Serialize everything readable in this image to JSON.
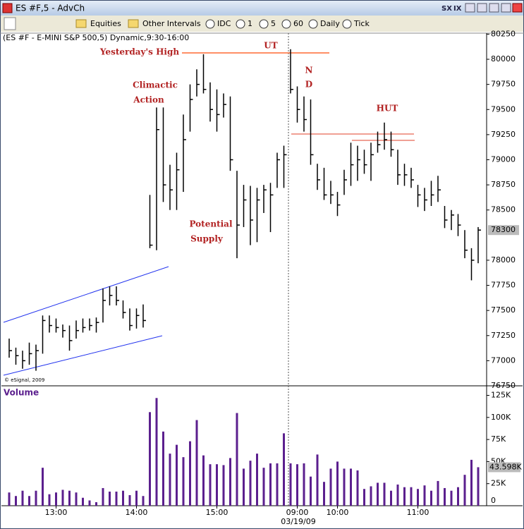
{
  "window": {
    "title": "ES #F,5 - AdvCh",
    "buttons": [
      "SX",
      "IX"
    ]
  },
  "toolbar": {
    "items": [
      "Equities",
      "Other Intervals",
      "IDC",
      "1",
      "5",
      "60",
      "Daily",
      "Tick"
    ]
  },
  "chart_data": {
    "type": "ohlc",
    "title": "(ES #F - E-MINI S&P 500,5) Dynamic,9:30-16:00",
    "copyright": "© eSignal, 2009",
    "color": "#000000",
    "categories": [
      null,
      null,
      null,
      null,
      null,
      null,
      null,
      "13:00",
      null,
      null,
      null,
      null,
      null,
      null,
      null,
      null,
      null,
      null,
      null,
      "14:00",
      null,
      null,
      null,
      null,
      null,
      null,
      null,
      null,
      null,
      null,
      null,
      "15:00",
      null,
      null,
      null,
      null,
      null,
      null,
      null,
      null,
      null,
      null,
      null,
      "09:00",
      null,
      null,
      null,
      null,
      null,
      "10:00",
      null,
      null,
      null,
      null,
      null,
      null,
      null,
      null,
      null,
      null,
      null,
      "11:00",
      null,
      null,
      null,
      null,
      null,
      null,
      null,
      null,
      null
    ],
    "date_label": "03/19/09",
    "high": [
      77220,
      77130,
      77100,
      77180,
      77160,
      77450,
      77450,
      77420,
      77360,
      77350,
      77400,
      77420,
      77420,
      77430,
      77720,
      77740,
      77740,
      77600,
      77520,
      77520,
      77560,
      78650,
      79520,
      79520,
      78950,
      79070,
      79450,
      79750,
      79900,
      80050,
      79770,
      79700,
      79660,
      79630,
      78890,
      78750,
      78740,
      78720,
      78750,
      78770,
      79070,
      79140,
      80100,
      79730,
      79630,
      79600,
      78960,
      78920,
      78790,
      78680,
      78900,
      79170,
      79140,
      79100,
      79170,
      79280,
      79370,
      79280,
      79100,
      78960,
      78920,
      78750,
      78720,
      78790,
      78840,
      78540,
      78500,
      78460,
      78300,
      78120,
      78330
    ],
    "low": [
      77030,
      76960,
      76920,
      76960,
      76900,
      77070,
      77280,
      77280,
      77230,
      77100,
      77220,
      77280,
      77300,
      77280,
      77380,
      77550,
      77550,
      77420,
      77300,
      77320,
      77330,
      78120,
      78100,
      78580,
      78500,
      78500,
      78680,
      79280,
      79630,
      79660,
      79380,
      79280,
      79420,
      78890,
      78020,
      78330,
      78150,
      78180,
      78470,
      78280,
      78720,
      78720,
      79660,
      79370,
      79280,
      78950,
      78700,
      78600,
      78560,
      78440,
      78650,
      78740,
      78790,
      78860,
      78790,
      79070,
      79100,
      79030,
      78750,
      78740,
      78720,
      78530,
      78490,
      78540,
      78580,
      78320,
      78300,
      78240,
      78020,
      77800,
      77970
    ],
    "close": [
      77100,
      77050,
      77000,
      77070,
      77100,
      77400,
      77350,
      77330,
      77300,
      77200,
      77300,
      77330,
      77350,
      77380,
      77600,
      77650,
      77600,
      77480,
      77350,
      77450,
      77400,
      78150,
      79300,
      78750,
      78700,
      78900,
      79200,
      79600,
      79750,
      79700,
      79500,
      79450,
      79550,
      79000,
      78350,
      78600,
      78400,
      78600,
      78700,
      78650,
      79000,
      79050,
      79700,
      79500,
      79400,
      79050,
      78800,
      78650,
      78650,
      78550,
      78800,
      78950,
      79000,
      78950,
      79050,
      79150,
      79200,
      79100,
      78850,
      78850,
      78800,
      78650,
      78600,
      78650,
      78700,
      78400,
      78450,
      78350,
      78100,
      78000,
      78300
    ],
    "ylim": [
      76750,
      80260
    ],
    "yticks": [
      76750,
      77000,
      77250,
      77500,
      77750,
      78000,
      78500,
      78750,
      79000,
      79250,
      79500,
      79750,
      80000,
      80250
    ],
    "price_readout": 78300,
    "annotations": [
      "Yesterday's High",
      "UT",
      "Climactic",
      "Action",
      "N",
      "D",
      "HUT",
      "Potential",
      "Supply"
    ],
    "annotation_color": "#b22222",
    "volume": {
      "label": "Volume",
      "color": "#5b1f8e",
      "values": [
        15000,
        11000,
        17000,
        11000,
        17000,
        43000,
        13000,
        15000,
        18000,
        17000,
        15000,
        9000,
        6000,
        4000,
        20000,
        16000,
        16000,
        17000,
        12000,
        17000,
        11000,
        106000,
        122000,
        84000,
        59000,
        69000,
        55000,
        73000,
        97000,
        57000,
        47000,
        47000,
        46000,
        54000,
        105000,
        42000,
        51000,
        59000,
        43000,
        48000,
        48000,
        82000,
        48000,
        47000,
        48000,
        33000,
        58000,
        27000,
        42000,
        50000,
        42000,
        42000,
        40000,
        19000,
        22000,
        26000,
        26000,
        17000,
        24000,
        21000,
        21000,
        19000,
        23000,
        17000,
        28000,
        20000,
        17000,
        21000,
        35000,
        52000,
        43598
      ],
      "ylim": [
        0,
        135000
      ],
      "yticks": [
        0,
        {
          "value": 25000,
          "label": "25K"
        },
        {
          "value": 50000,
          "label": "50K"
        },
        {
          "value": 75000,
          "label": "75K"
        },
        {
          "value": 100000,
          "label": "100K"
        },
        {
          "value": 125000,
          "label": "125K"
        }
      ],
      "readout": {
        "value": 43598,
        "label": "43.598K"
      }
    }
  }
}
